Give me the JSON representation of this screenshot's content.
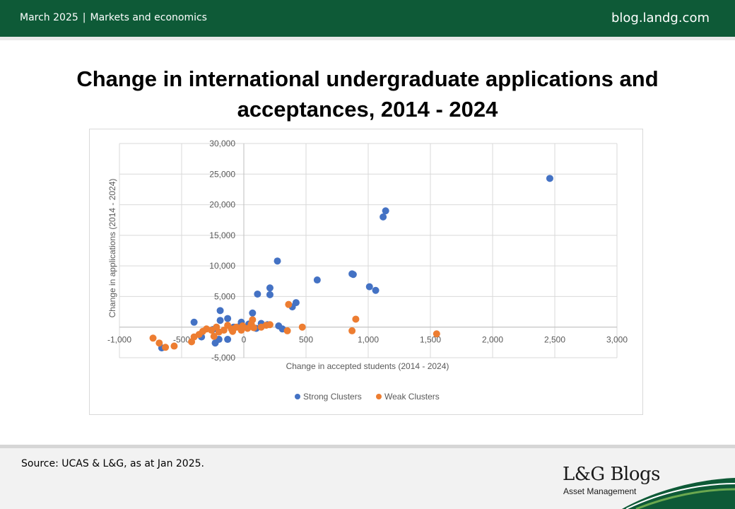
{
  "header": {
    "date": "March 2025",
    "separator": "|",
    "category": "Markets and economics",
    "site": "blog.landg.com"
  },
  "title_line1": "Change in international undergraduate applications and",
  "title_line2": "acceptances, 2014 - 2024",
  "footer": {
    "source": "Source: UCAS & L&G, as at Jan 2025.",
    "brand": "L&G Blogs",
    "brand_sub": "Asset Management"
  },
  "colors": {
    "header_green": "#0e5a37",
    "strong": "#4472c4",
    "weak": "#ed7d31"
  },
  "chart_data": {
    "type": "scatter",
    "xlabel": "Change in accepted students  (2014 - 2024)",
    "ylabel": "Change in applications (2014 - 2024)",
    "xlim": [
      -1000,
      3000
    ],
    "ylim": [
      -5000,
      30000
    ],
    "x_ticks": [
      -1000,
      -500,
      0,
      500,
      1000,
      1500,
      2000,
      2500,
      3000
    ],
    "x_tick_labels": [
      "-1,000",
      "-500",
      "0",
      "500",
      "1,000",
      "1,500",
      "2,000",
      "2,500",
      "3,000"
    ],
    "y_ticks": [
      -5000,
      0,
      5000,
      10000,
      15000,
      20000,
      25000,
      30000
    ],
    "y_tick_labels": [
      "-5,000",
      "0",
      "5,000",
      "10,000",
      "15,000",
      "20,000",
      "25,000",
      "30,000"
    ],
    "grid": true,
    "legend_position": "bottom",
    "series": [
      {
        "name": "Strong Clusters",
        "color": "#4472c4",
        "points": [
          [
            2460,
            24300
          ],
          [
            1140,
            19000
          ],
          [
            1120,
            18000
          ],
          [
            880,
            8600
          ],
          [
            870,
            8700
          ],
          [
            1010,
            6600
          ],
          [
            1060,
            6000
          ],
          [
            590,
            7700
          ],
          [
            270,
            10800
          ],
          [
            210,
            6400
          ],
          [
            110,
            5400
          ],
          [
            210,
            5300
          ],
          [
            420,
            4000
          ],
          [
            390,
            3300
          ],
          [
            70,
            2300
          ],
          [
            -190,
            2700
          ],
          [
            -130,
            1400
          ],
          [
            -190,
            1100
          ],
          [
            -400,
            800
          ],
          [
            -20,
            800
          ],
          [
            140,
            600
          ],
          [
            190,
            400
          ],
          [
            280,
            200
          ],
          [
            310,
            -300
          ],
          [
            100,
            -200
          ],
          [
            -340,
            -1600
          ],
          [
            -230,
            -2600
          ],
          [
            -130,
            -2000
          ],
          [
            -660,
            -3400
          ],
          [
            -200,
            -2000
          ],
          [
            -30,
            200
          ],
          [
            40,
            500
          ],
          [
            -80,
            0
          ],
          [
            -250,
            -400
          ],
          [
            -350,
            -1200
          ]
        ]
      },
      {
        "name": "Weak Clusters",
        "color": "#ed7d31",
        "points": [
          [
            1550,
            -1100
          ],
          [
            900,
            1300
          ],
          [
            870,
            -600
          ],
          [
            360,
            3700
          ],
          [
            470,
            0
          ],
          [
            350,
            -600
          ],
          [
            210,
            400
          ],
          [
            180,
            300
          ],
          [
            70,
            1200
          ],
          [
            60,
            500
          ],
          [
            30,
            -200
          ],
          [
            -10,
            200
          ],
          [
            -60,
            0
          ],
          [
            -100,
            -300
          ],
          [
            -130,
            300
          ],
          [
            -160,
            -500
          ],
          [
            -200,
            -800
          ],
          [
            -220,
            0
          ],
          [
            -260,
            -500
          ],
          [
            -300,
            -300
          ],
          [
            -330,
            -700
          ],
          [
            -360,
            -1200
          ],
          [
            -400,
            -1600
          ],
          [
            -420,
            -2400
          ],
          [
            -560,
            -3100
          ],
          [
            -630,
            -3300
          ],
          [
            -680,
            -2600
          ],
          [
            -730,
            -1800
          ],
          [
            -20,
            -500
          ],
          [
            80,
            -100
          ],
          [
            140,
            0
          ],
          [
            -240,
            -1500
          ],
          [
            -90,
            -700
          ]
        ]
      }
    ]
  }
}
